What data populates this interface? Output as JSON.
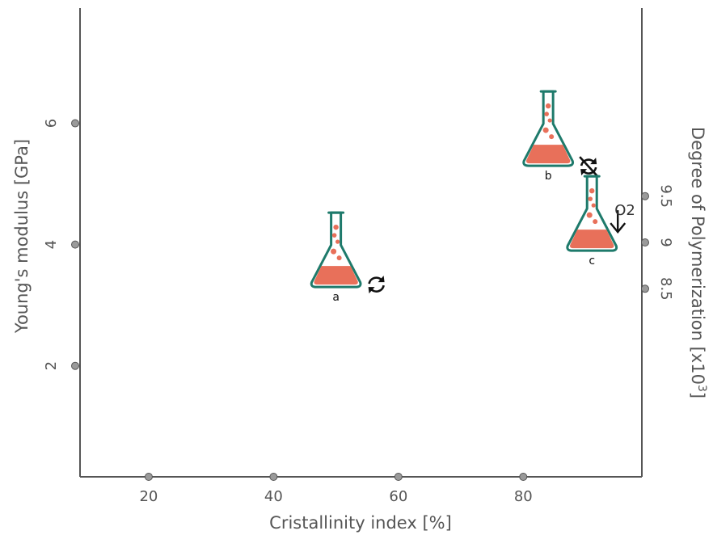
{
  "chart_data": {
    "type": "scatter",
    "xlabel": "Cristallinity index [%]",
    "ylabel": "Young's modulus [GPa]",
    "y2label": "Degree of Polymerization [x10",
    "y2label_sup": "3",
    "y2label_end": "]",
    "xlim": [
      9,
      99
    ],
    "ylim": [
      0.17,
      7.9
    ],
    "y2lim": [
      6.47,
      11.53
    ],
    "x_ticks": [
      20,
      40,
      60,
      80
    ],
    "x_tick_labels": [
      "20",
      "40",
      "60",
      "80"
    ],
    "y_ticks": [
      2,
      4,
      6
    ],
    "y_tick_labels": [
      "2",
      "4",
      "6"
    ],
    "y2_ticks": [
      8.5,
      9,
      9.5
    ],
    "y2_tick_labels": [
      "8.5",
      "9",
      "9.5"
    ],
    "grid": false,
    "points": [
      {
        "label": "a",
        "x": 50,
        "y": 3.3,
        "marker": "flask",
        "annotation": "recycle-icon"
      },
      {
        "label": "b",
        "x": 84,
        "y": 5.3,
        "marker": "flask",
        "annotation": "no-recycle-icon"
      },
      {
        "label": "c",
        "x": 91,
        "y": 3.9,
        "marker": "flask",
        "annotation": "oxygen-down-arrow-icon",
        "annotation_text": "O2"
      }
    ],
    "colors": {
      "flask_outline": "#1e7a6b",
      "flask_liquid": "#e8705a",
      "axis": "#555555",
      "tick_dot": "#9a9a9a"
    }
  }
}
